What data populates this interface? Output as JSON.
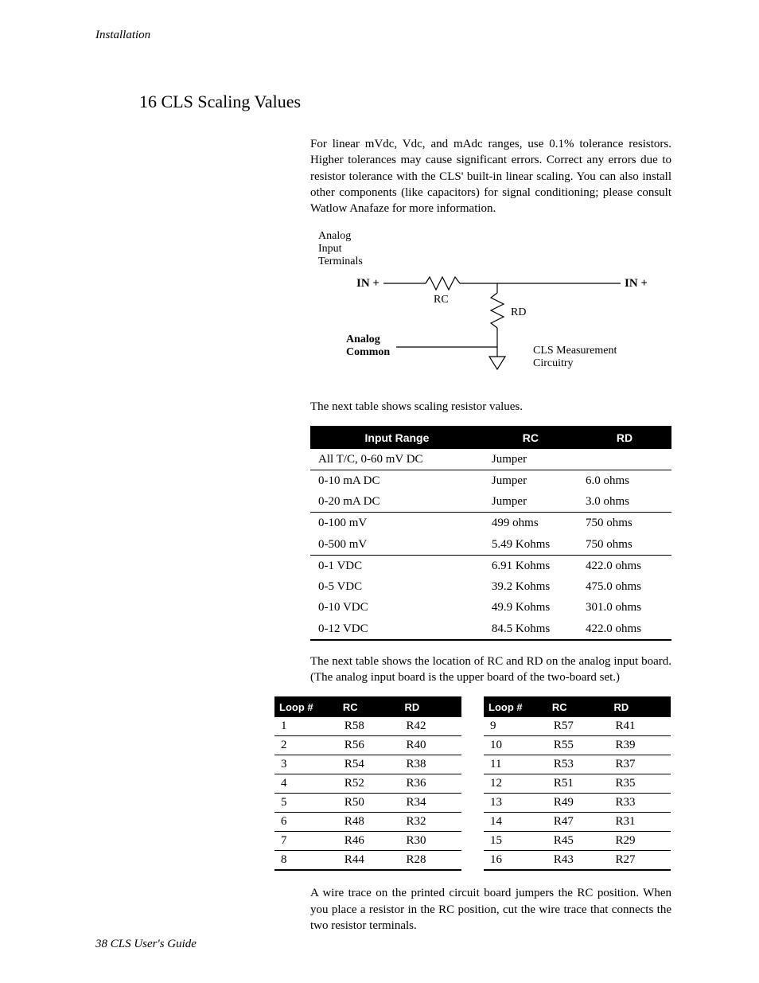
{
  "running_head": "Installation",
  "section_title": "16 CLS Scaling Values",
  "para1": "For linear mVdc, Vdc, and mAdc ranges, use 0.1% tolerance resistors. Higher tolerances may cause significant errors. Correct any errors due to resistor tolerance with the CLS' built-in linear scaling. You can also install other components (like capacitors) for signal conditioning; please consult Watlow Anafaze for more information.",
  "diagram": {
    "label_terminals_l1": "Analog",
    "label_terminals_l2": "Input",
    "label_terminals_l3": "Terminals",
    "in_plus_left": "IN +",
    "in_plus_right": "IN +",
    "rc": "RC",
    "rd": "RD",
    "analog_common_l1": "Analog",
    "analog_common_l2": "Common",
    "meas_l1": "CLS Measurement",
    "meas_l2": "Circuitry",
    "line_color": "#000000",
    "font_size_small": 14,
    "font_size_bold": 14
  },
  "para2": "The next table shows scaling resistor values.",
  "table1": {
    "headers": {
      "col1": "Input Range",
      "col2": "RC",
      "col3": "RD"
    },
    "groups": [
      {
        "rows": [
          {
            "ir": "All T/C, 0-60 mV DC",
            "rc": "Jumper",
            "rd": ""
          }
        ]
      },
      {
        "rows": [
          {
            "ir": "0-10 mA DC",
            "rc": "Jumper",
            "rd": "6.0 ohms"
          },
          {
            "ir": "0-20 mA DC",
            "rc": "Jumper",
            "rd": "3.0 ohms"
          }
        ]
      },
      {
        "rows": [
          {
            "ir": "0-100 mV",
            "rc": "499 ohms",
            "rd": "750 ohms"
          },
          {
            "ir": "0-500 mV",
            "rc": "5.49 Kohms",
            "rd": "750 ohms"
          }
        ]
      },
      {
        "rows": [
          {
            "ir": "0-1 VDC",
            "rc": "6.91 Kohms",
            "rd": "422.0 ohms"
          },
          {
            "ir": "0-5 VDC",
            "rc": "39.2 Kohms",
            "rd": "475.0 ohms"
          },
          {
            "ir": "0-10 VDC",
            "rc": "49.9 Kohms",
            "rd": "301.0 ohms"
          },
          {
            "ir": "0-12 VDC",
            "rc": "84.5 Kohms",
            "rd": "422.0 ohms"
          }
        ]
      }
    ]
  },
  "para3": "The next table shows the location of RC and RD on the analog input board. (The analog input board is the upper board of the two-board set.)",
  "table2_headers": {
    "col1": "Loop #",
    "col2": "RC",
    "col3": "RD"
  },
  "table2_left": [
    {
      "loop": "1",
      "rc": "R58",
      "rd": "R42"
    },
    {
      "loop": "2",
      "rc": "R56",
      "rd": "R40"
    },
    {
      "loop": "3",
      "rc": "R54",
      "rd": "R38"
    },
    {
      "loop": "4",
      "rc": "R52",
      "rd": "R36"
    },
    {
      "loop": "5",
      "rc": "R50",
      "rd": "R34"
    },
    {
      "loop": "6",
      "rc": "R48",
      "rd": "R32"
    },
    {
      "loop": "7",
      "rc": "R46",
      "rd": "R30"
    },
    {
      "loop": "8",
      "rc": "R44",
      "rd": "R28"
    }
  ],
  "table2_right": [
    {
      "loop": "9",
      "rc": "R57",
      "rd": "R41"
    },
    {
      "loop": "10",
      "rc": "R55",
      "rd": "R39"
    },
    {
      "loop": "11",
      "rc": "R53",
      "rd": "R37"
    },
    {
      "loop": "12",
      "rc": "R51",
      "rd": "R35"
    },
    {
      "loop": "13",
      "rc": "R49",
      "rd": "R33"
    },
    {
      "loop": "14",
      "rc": "R47",
      "rd": "R31"
    },
    {
      "loop": "15",
      "rc": "R45",
      "rd": "R29"
    },
    {
      "loop": "16",
      "rc": "R43",
      "rd": "R27"
    }
  ],
  "para4": "A wire trace on the printed circuit board jumpers the RC position. When you place a resistor in the RC position, cut the wire trace that connects the two resistor terminals.",
  "footer": "38 CLS User's Guide"
}
